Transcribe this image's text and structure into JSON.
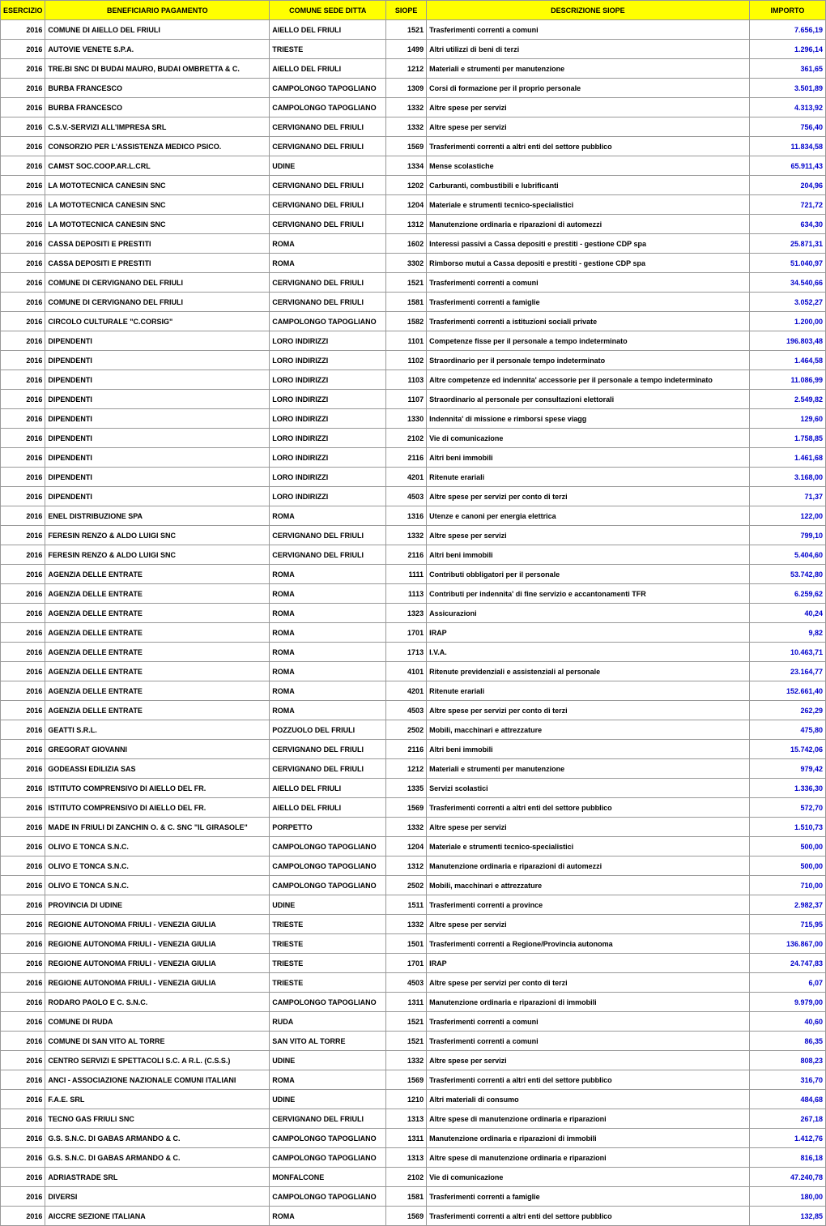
{
  "columns": [
    "ESERCIZIO",
    "BENEFICIARIO PAGAMENTO",
    "COMUNE SEDE DITTA",
    "SIOPE",
    "DESCRIZIONE SIOPE",
    "IMPORTO"
  ],
  "header_bg": "#ffff00",
  "header_color": "#000000",
  "num_color": "#0000cc",
  "border_color": "#999999",
  "font_family": "Arial",
  "font_size_pt": 7,
  "rows": [
    [
      "2016",
      "COMUNE DI AIELLO DEL FRIULI",
      "AIELLO DEL FRIULI",
      "1521",
      "Trasferimenti correnti a comuni",
      "7.656,19"
    ],
    [
      "2016",
      "AUTOVIE VENETE S.P.A.",
      "TRIESTE",
      "1499",
      "Altri utilizzi di beni di terzi",
      "1.296,14"
    ],
    [
      "2016",
      "TRE.BI SNC DI BUDAI MAURO, BUDAI OMBRETTA & C.",
      "AIELLO DEL FRIULI",
      "1212",
      "Materiali e strumenti per manutenzione",
      "361,65"
    ],
    [
      "2016",
      "BURBA FRANCESCO",
      "CAMPOLONGO TAPOGLIANO",
      "1309",
      "Corsi di formazione per il proprio personale",
      "3.501,89"
    ],
    [
      "2016",
      "BURBA FRANCESCO",
      "CAMPOLONGO TAPOGLIANO",
      "1332",
      "Altre spese per servizi",
      "4.313,92"
    ],
    [
      "2016",
      "C.S.V.-SERVIZI ALL'IMPRESA SRL",
      "CERVIGNANO DEL FRIULI",
      "1332",
      "Altre spese per servizi",
      "756,40"
    ],
    [
      "2016",
      "CONSORZIO PER L'ASSISTENZA MEDICO PSICO.",
      "CERVIGNANO DEL FRIULI",
      "1569",
      "Trasferimenti correnti a altri enti del settore pubblico",
      "11.834,58"
    ],
    [
      "2016",
      "CAMST SOC.COOP.AR.L.CRL",
      "UDINE",
      "1334",
      "Mense scolastiche",
      "65.911,43"
    ],
    [
      "2016",
      "LA MOTOTECNICA CANESIN SNC",
      "CERVIGNANO DEL FRIULI",
      "1202",
      "Carburanti, combustibili e lubrificanti",
      "204,96"
    ],
    [
      "2016",
      "LA MOTOTECNICA CANESIN SNC",
      "CERVIGNANO DEL FRIULI",
      "1204",
      "Materiale e strumenti tecnico-specialistici",
      "721,72"
    ],
    [
      "2016",
      "LA MOTOTECNICA CANESIN SNC",
      "CERVIGNANO DEL FRIULI",
      "1312",
      "Manutenzione ordinaria e riparazioni di automezzi",
      "634,30"
    ],
    [
      "2016",
      "CASSA DEPOSITI E PRESTITI",
      "ROMA",
      "1602",
      "Interessi passivi a Cassa depositi e prestiti - gestione CDP spa",
      "25.871,31"
    ],
    [
      "2016",
      "CASSA DEPOSITI E PRESTITI",
      "ROMA",
      "3302",
      "Rimborso mutui  a Cassa depositi e prestiti - gestione CDP spa",
      "51.040,97"
    ],
    [
      "2016",
      "COMUNE DI CERVIGNANO DEL FRIULI",
      "CERVIGNANO DEL FRIULI",
      "1521",
      "Trasferimenti correnti a comuni",
      "34.540,66"
    ],
    [
      "2016",
      "COMUNE DI CERVIGNANO DEL FRIULI",
      "CERVIGNANO DEL FRIULI",
      "1581",
      "Trasferimenti correnti a famiglie",
      "3.052,27"
    ],
    [
      "2016",
      "CIRCOLO CULTURALE \"C.CORSIG\"",
      "CAMPOLONGO TAPOGLIANO",
      "1582",
      "Trasferimenti correnti a istituzioni sociali private",
      "1.200,00"
    ],
    [
      "2016",
      "DIPENDENTI",
      "LORO INDIRIZZI",
      "1101",
      "Competenze fisse per il personale a tempo indeterminato",
      "196.803,48"
    ],
    [
      "2016",
      "DIPENDENTI",
      "LORO INDIRIZZI",
      "1102",
      "Straordinario per il personale tempo indeterminato",
      "1.464,58"
    ],
    [
      "2016",
      "DIPENDENTI",
      "LORO INDIRIZZI",
      "1103",
      "Altre competenze ed indennita' accessorie per il personale a tempo indeterminato",
      "11.086,99"
    ],
    [
      "2016",
      "DIPENDENTI",
      "LORO INDIRIZZI",
      "1107",
      "Straordinario al personale per consultazioni elettorali",
      "2.549,82"
    ],
    [
      "2016",
      "DIPENDENTI",
      "LORO INDIRIZZI",
      "1330",
      "Indennita' di missione e rimborsi spese viagg",
      "129,60"
    ],
    [
      "2016",
      "DIPENDENTI",
      "LORO INDIRIZZI",
      "2102",
      "Vie di comunicazione",
      "1.758,85"
    ],
    [
      "2016",
      "DIPENDENTI",
      "LORO INDIRIZZI",
      "2116",
      "Altri beni immobili",
      "1.461,68"
    ],
    [
      "2016",
      "DIPENDENTI",
      "LORO INDIRIZZI",
      "4201",
      "Ritenute erariali",
      "3.168,00"
    ],
    [
      "2016",
      "DIPENDENTI",
      "LORO INDIRIZZI",
      "4503",
      "Altre spese per servizi per conto di terzi",
      "71,37"
    ],
    [
      "2016",
      "ENEL DISTRIBUZIONE SPA",
      "ROMA",
      "1316",
      "Utenze e canoni per energia elettrica",
      "122,00"
    ],
    [
      "2016",
      "FERESIN RENZO & ALDO LUIGI SNC",
      "CERVIGNANO DEL FRIULI",
      "1332",
      "Altre spese per servizi",
      "799,10"
    ],
    [
      "2016",
      "FERESIN RENZO & ALDO LUIGI SNC",
      "CERVIGNANO DEL FRIULI",
      "2116",
      "Altri beni immobili",
      "5.404,60"
    ],
    [
      "2016",
      "AGENZIA DELLE ENTRATE",
      "ROMA",
      "1111",
      "Contributi obbligatori per il personale",
      "53.742,80"
    ],
    [
      "2016",
      "AGENZIA DELLE ENTRATE",
      "ROMA",
      "1113",
      "Contributi per indennita' di fine servizio e accantonamenti TFR",
      "6.259,62"
    ],
    [
      "2016",
      "AGENZIA DELLE ENTRATE",
      "ROMA",
      "1323",
      "Assicurazioni",
      "40,24"
    ],
    [
      "2016",
      "AGENZIA DELLE ENTRATE",
      "ROMA",
      "1701",
      "IRAP",
      "9,82"
    ],
    [
      "2016",
      "AGENZIA DELLE ENTRATE",
      "ROMA",
      "1713",
      "I.V.A.",
      "10.463,71"
    ],
    [
      "2016",
      "AGENZIA DELLE ENTRATE",
      "ROMA",
      "4101",
      "Ritenute previdenziali e assistenziali al personale",
      "23.164,77"
    ],
    [
      "2016",
      "AGENZIA DELLE ENTRATE",
      "ROMA",
      "4201",
      "Ritenute erariali",
      "152.661,40"
    ],
    [
      "2016",
      "AGENZIA DELLE ENTRATE",
      "ROMA",
      "4503",
      "Altre spese per servizi per conto di terzi",
      "262,29"
    ],
    [
      "2016",
      "GEATTI S.R.L.",
      "POZZUOLO DEL FRIULI",
      "2502",
      "Mobili, macchinari e attrezzature",
      "475,80"
    ],
    [
      "2016",
      "GREGORAT GIOVANNI",
      "CERVIGNANO DEL FRIULI",
      "2116",
      "Altri beni immobili",
      "15.742,06"
    ],
    [
      "2016",
      "GODEASSI EDILIZIA SAS",
      "CERVIGNANO DEL FRIULI",
      "1212",
      "Materiali e strumenti per manutenzione",
      "979,42"
    ],
    [
      "2016",
      "ISTITUTO COMPRENSIVO DI AIELLO DEL FR.",
      "AIELLO DEL FRIULI",
      "1335",
      "Servizi scolastici",
      "1.336,30"
    ],
    [
      "2016",
      "ISTITUTO COMPRENSIVO DI AIELLO DEL FR.",
      "AIELLO DEL FRIULI",
      "1569",
      "Trasferimenti correnti a altri enti del settore pubblico",
      "572,70"
    ],
    [
      "2016",
      "MADE IN FRIULI DI ZANCHIN O. & C. SNC \"IL GIRASOLE\"",
      "PORPETTO",
      "1332",
      "Altre spese per servizi",
      "1.510,73"
    ],
    [
      "2016",
      "OLIVO E TONCA S.N.C.",
      "CAMPOLONGO TAPOGLIANO",
      "1204",
      "Materiale e strumenti tecnico-specialistici",
      "500,00"
    ],
    [
      "2016",
      "OLIVO E TONCA S.N.C.",
      "CAMPOLONGO TAPOGLIANO",
      "1312",
      "Manutenzione ordinaria e riparazioni di automezzi",
      "500,00"
    ],
    [
      "2016",
      "OLIVO E TONCA S.N.C.",
      "CAMPOLONGO TAPOGLIANO",
      "2502",
      "Mobili, macchinari e attrezzature",
      "710,00"
    ],
    [
      "2016",
      "PROVINCIA DI UDINE",
      "UDINE",
      "1511",
      "Trasferimenti correnti a province",
      "2.982,37"
    ],
    [
      "2016",
      "REGIONE AUTONOMA FRIULI - VENEZIA GIULIA",
      "TRIESTE",
      "1332",
      "Altre spese per servizi",
      "715,95"
    ],
    [
      "2016",
      "REGIONE AUTONOMA FRIULI - VENEZIA GIULIA",
      "TRIESTE",
      "1501",
      "Trasferimenti correnti a Regione/Provincia autonoma",
      "136.867,00"
    ],
    [
      "2016",
      "REGIONE AUTONOMA FRIULI - VENEZIA GIULIA",
      "TRIESTE",
      "1701",
      "IRAP",
      "24.747,83"
    ],
    [
      "2016",
      "REGIONE AUTONOMA FRIULI - VENEZIA GIULIA",
      "TRIESTE",
      "4503",
      "Altre spese per servizi per conto di terzi",
      "6,07"
    ],
    [
      "2016",
      "RODARO PAOLO E C. S.N.C.",
      "CAMPOLONGO TAPOGLIANO",
      "1311",
      "Manutenzione ordinaria e riparazioni di immobili",
      "9.979,00"
    ],
    [
      "2016",
      "COMUNE DI RUDA",
      "RUDA",
      "1521",
      "Trasferimenti correnti a comuni",
      "40,60"
    ],
    [
      "2016",
      "COMUNE DI SAN VITO AL TORRE",
      "SAN VITO AL TORRE",
      "1521",
      "Trasferimenti correnti a comuni",
      "86,35"
    ],
    [
      "2016",
      "CENTRO SERVIZI E SPETTACOLI S.C. A R.L. (C.S.S.)",
      "UDINE",
      "1332",
      "Altre spese per servizi",
      "808,23"
    ],
    [
      "2016",
      "ANCI - ASSOCIAZIONE NAZIONALE COMUNI ITALIANI",
      "ROMA",
      "1569",
      "Trasferimenti correnti a altri enti del settore pubblico",
      "316,70"
    ],
    [
      "2016",
      "F.A.E. SRL",
      "UDINE",
      "1210",
      "Altri materiali di consumo",
      "484,68"
    ],
    [
      "2016",
      "TECNO GAS FRIULI SNC",
      "CERVIGNANO DEL FRIULI",
      "1313",
      "Altre spese di manutenzione ordinaria e riparazioni",
      "267,18"
    ],
    [
      "2016",
      "G.S. S.N.C. DI GABAS ARMANDO & C.",
      "CAMPOLONGO TAPOGLIANO",
      "1311",
      "Manutenzione ordinaria e riparazioni di immobili",
      "1.412,76"
    ],
    [
      "2016",
      "G.S. S.N.C. DI GABAS ARMANDO & C.",
      "CAMPOLONGO TAPOGLIANO",
      "1313",
      "Altre spese di manutenzione ordinaria e riparazioni",
      "816,18"
    ],
    [
      "2016",
      "ADRIASTRADE SRL",
      "MONFALCONE",
      "2102",
      "Vie di comunicazione",
      "47.240,78"
    ],
    [
      "2016",
      "DIVERSI",
      "CAMPOLONGO TAPOGLIANO",
      "1581",
      "Trasferimenti correnti a famiglie",
      "180,00"
    ],
    [
      "2016",
      "AICCRE SEZIONE ITALIANA",
      "ROMA",
      "1569",
      "Trasferimenti correnti a altri enti del settore pubblico",
      "132,85"
    ]
  ]
}
